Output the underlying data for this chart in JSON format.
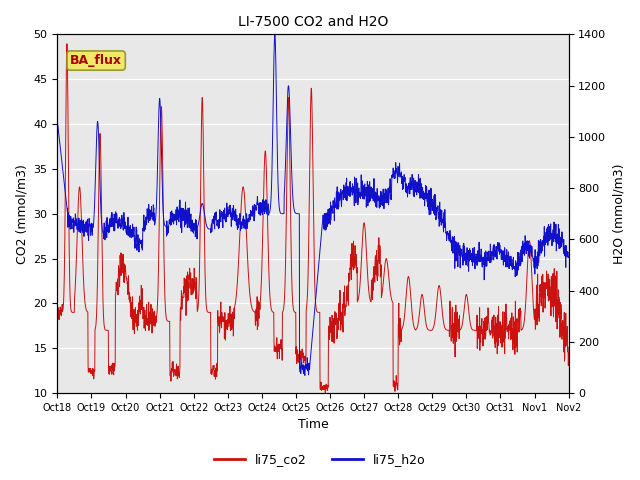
{
  "title": "LI-7500 CO2 and H2O",
  "xlabel": "Time",
  "ylabel_left": "CO2 (mmol/m3)",
  "ylabel_right": "H2O (mmol/m3)",
  "ylim_left": [
    10,
    50
  ],
  "ylim_right": [
    0,
    1400
  ],
  "yticks_left": [
    10,
    15,
    20,
    25,
    30,
    35,
    40,
    45,
    50
  ],
  "yticks_right": [
    0,
    200,
    400,
    600,
    800,
    1000,
    1200,
    1400
  ],
  "bg_color": "#e8e8e8",
  "annotation_text": "BA_flux",
  "annotation_color": "#aa0000",
  "annotation_bg": "#f0e868",
  "legend_co2": "li75_co2",
  "legend_h2o": "li75_h2o",
  "line_color_co2": "#cc1111",
  "line_color_h2o": "#1111cc",
  "xtick_labels": [
    "Oct 18",
    "Oct 19",
    "Oct 20",
    "Oct 21",
    "Oct 22",
    "Oct 23",
    "Oct 24",
    "Oct 25",
    "Oct 26",
    "Oct 27",
    "Oct 28",
    "Oct 29",
    "Oct 30",
    "Oct 31",
    "Nov 1",
    "Nov 2"
  ],
  "figsize": [
    6.4,
    4.8
  ],
  "dpi": 100
}
